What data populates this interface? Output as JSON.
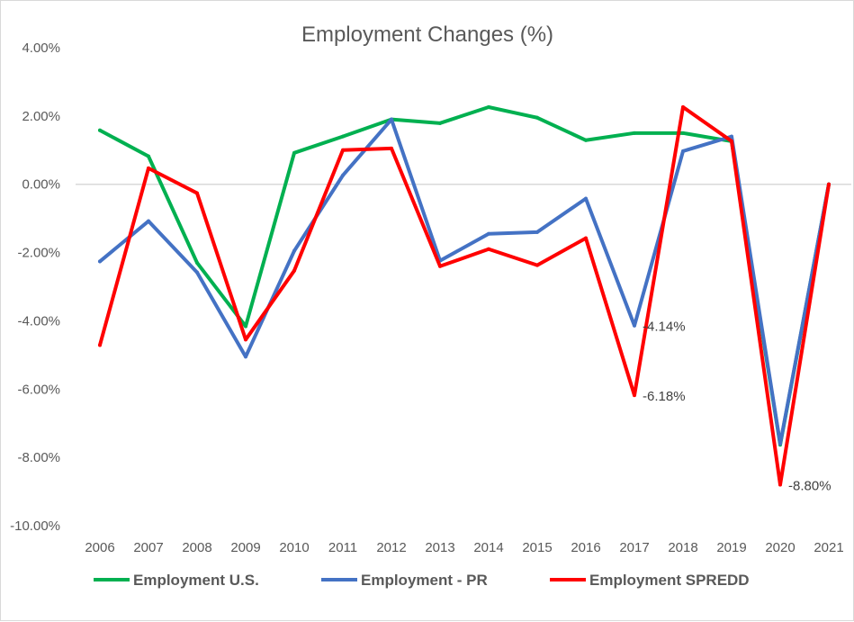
{
  "chart_data": {
    "type": "line",
    "title": "Employment Changes (%)",
    "xlabel": "",
    "ylabel": "",
    "x": [
      "2006",
      "2007",
      "2008",
      "2009",
      "2010",
      "2011",
      "2012",
      "2013",
      "2014",
      "2015",
      "2016",
      "2017",
      "2018",
      "2019",
      "2020",
      "2021"
    ],
    "ylim": [
      -10,
      4
    ],
    "yticks": [
      "4.00%",
      "2.00%",
      "0.00%",
      "-2.00%",
      "-4.00%",
      "-6.00%",
      "-8.00%",
      "-10.00%"
    ],
    "ytick_values": [
      4,
      2,
      0,
      -2,
      -4,
      -6,
      -8,
      -10
    ],
    "grid": "zero-line only",
    "legend_position": "bottom",
    "series": [
      {
        "name": "Employment U.S.",
        "color": "#00b050",
        "values": [
          1.58,
          0.82,
          -2.3,
          -4.16,
          0.92,
          1.4,
          1.9,
          1.79,
          2.26,
          1.95,
          1.29,
          1.5,
          1.5,
          1.26,
          -7.63,
          0
        ]
      },
      {
        "name": "Employment - PR",
        "color": "#4472c4",
        "values": [
          -2.26,
          -1.08,
          -2.58,
          -5.05,
          -1.95,
          0.26,
          1.9,
          -2.24,
          -1.45,
          -1.4,
          -0.42,
          -4.14,
          0.97,
          1.4,
          -7.6,
          0
        ]
      },
      {
        "name": "Employment SPREDD",
        "color": "#ff0000",
        "values": [
          -4.71,
          0.47,
          -0.26,
          -4.55,
          -2.53,
          1.0,
          1.05,
          -2.4,
          -1.9,
          -2.37,
          -1.58,
          -6.18,
          2.26,
          1.26,
          -8.8,
          0
        ]
      }
    ],
    "annotations": [
      {
        "text": "-4.14%",
        "x": "2017",
        "y": -4.14
      },
      {
        "text": "-6.18%",
        "x": "2017",
        "y": -6.18
      },
      {
        "text": "-8.80%",
        "x": "2020",
        "y": -8.8
      }
    ]
  }
}
